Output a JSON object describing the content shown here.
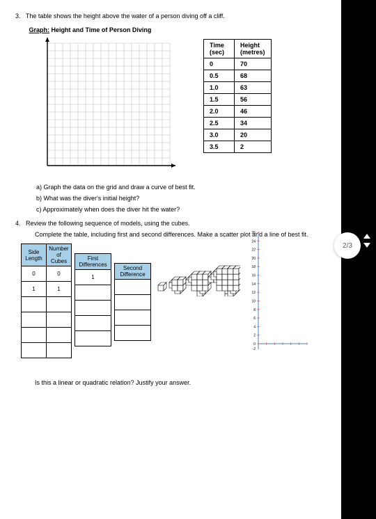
{
  "q3": {
    "number": "3.",
    "text": "The table shows the height above the water of a person diving off a cliff.",
    "graph_label_prefix": "Graph:",
    "graph_title": "Height and Time of Person Diving",
    "grid": {
      "cols": 16,
      "rows": 16,
      "cell": 11,
      "axis_color": "#000000",
      "grid_color": "#bfbfbf"
    },
    "table": {
      "headers": {
        "time": "Time",
        "time_unit": "(sec)",
        "height": "Height",
        "height_unit": "(metres)"
      },
      "rows": [
        {
          "t": "0",
          "h": "70"
        },
        {
          "t": "0.5",
          "h": "68"
        },
        {
          "t": "1.0",
          "h": "63"
        },
        {
          "t": "1.5",
          "h": "56"
        },
        {
          "t": "2.0",
          "h": "46"
        },
        {
          "t": "2.5",
          "h": "34"
        },
        {
          "t": "3.0",
          "h": "20"
        },
        {
          "t": "3.5",
          "h": "2"
        }
      ]
    },
    "subq": {
      "a": "a)   Graph the data on the grid and draw a curve of best fit.",
      "b": "b)   What was the diver's initial height?",
      "c": "c)   Approximately when does the diver hit the water?"
    }
  },
  "q4": {
    "number": "4.",
    "text": "Review the following sequence of models, using the cubes.",
    "instr": "Complete the table, including first and second differences. Make a scatter plot and a line of best fit.",
    "cubes_table": {
      "headers": {
        "side": "Side Length",
        "num": "Number of Cubes"
      },
      "rows": [
        {
          "s": "0",
          "n": "0"
        },
        {
          "s": "1",
          "n": "1"
        },
        {
          "s": "",
          "n": ""
        },
        {
          "s": "",
          "n": ""
        },
        {
          "s": "",
          "n": ""
        },
        {
          "s": "",
          "n": ""
        }
      ]
    },
    "fd_table": {
      "header": "First Differences",
      "rows": [
        "1",
        "",
        "",
        "",
        ""
      ]
    },
    "sd_table": {
      "header": "Second Difference",
      "rows": [
        "",
        "",
        "",
        ""
      ]
    },
    "final": "Is this a linear or quadratic relation?  Justify your answer.",
    "scatter": {
      "xmax": 6,
      "ymax": 26,
      "ytick": 2,
      "xtick": 1,
      "axis_color": "#4a7fbf",
      "tick_color": "#d06666",
      "width": 92,
      "height": 180
    }
  },
  "ui": {
    "page_indicator": "2/3"
  },
  "colors": {
    "header_fill": "#a8d0e8",
    "page_bg": "#ffffff",
    "sidebar_bg": "#000000"
  }
}
